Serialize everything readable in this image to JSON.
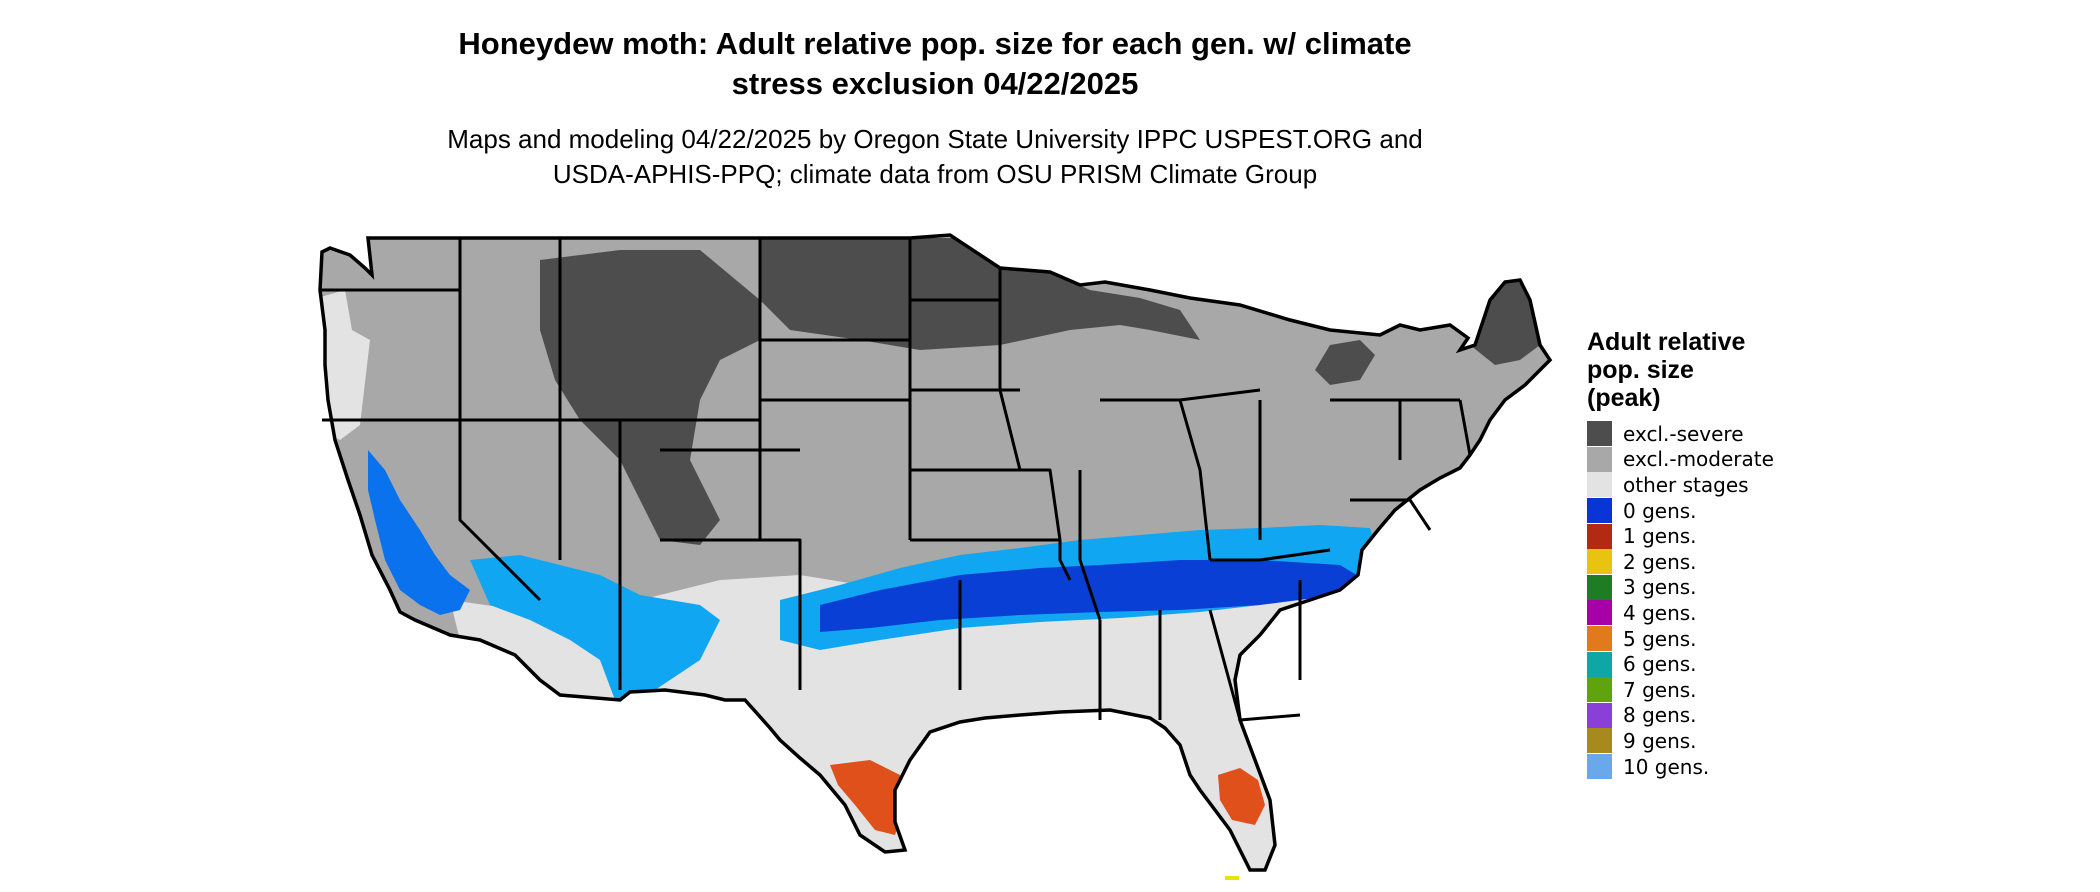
{
  "map": {
    "title": "Honeydew moth: Adult relative pop. size for each gen. w/ climate\nstress exclusion 04/22/2025",
    "subtitle": "Maps and modeling 04/22/2025 by Oregon State University IPPC USPEST.ORG and\nUSDA-APHIS-PPQ; climate data from OSU PRISM Climate Group",
    "region": "Contiguous United States with state boundaries",
    "colors": {
      "severe": "#4d4d4d",
      "moderate": "#a8a8a8",
      "other": "#e3e3e3",
      "blue_dark": "#0a3fd6",
      "blue_mid": "#0a72ec",
      "blue_light": "#11a6f2",
      "red": "#e0501a",
      "border": "#000000"
    }
  },
  "legend": {
    "title": "Adult relative\npop. size\n(peak)",
    "items": [
      {
        "label": "excl.-severe",
        "color": "#4d4d4d"
      },
      {
        "label": "excl.-moderate",
        "color": "#a8a8a8"
      },
      {
        "label": "other stages",
        "color": "#e3e3e3"
      },
      {
        "label": "0 gens.",
        "color": "#0a35d6"
      },
      {
        "label": "1 gens.",
        "color": "#b22a12"
      },
      {
        "label": "2 gens.",
        "color": "#e8c310"
      },
      {
        "label": "3 gens.",
        "color": "#1e7d22"
      },
      {
        "label": "4 gens.",
        "color": "#a800a8"
      },
      {
        "label": "5 gens.",
        "color": "#e07a1c"
      },
      {
        "label": "6 gens.",
        "color": "#0fa6a6"
      },
      {
        "label": "7 gens.",
        "color": "#5fa40f"
      },
      {
        "label": "8 gens.",
        "color": "#8a3fd6"
      },
      {
        "label": "9 gens.",
        "color": "#a68a1e"
      },
      {
        "label": "10 gens.",
        "color": "#6aa8ec"
      }
    ]
  }
}
